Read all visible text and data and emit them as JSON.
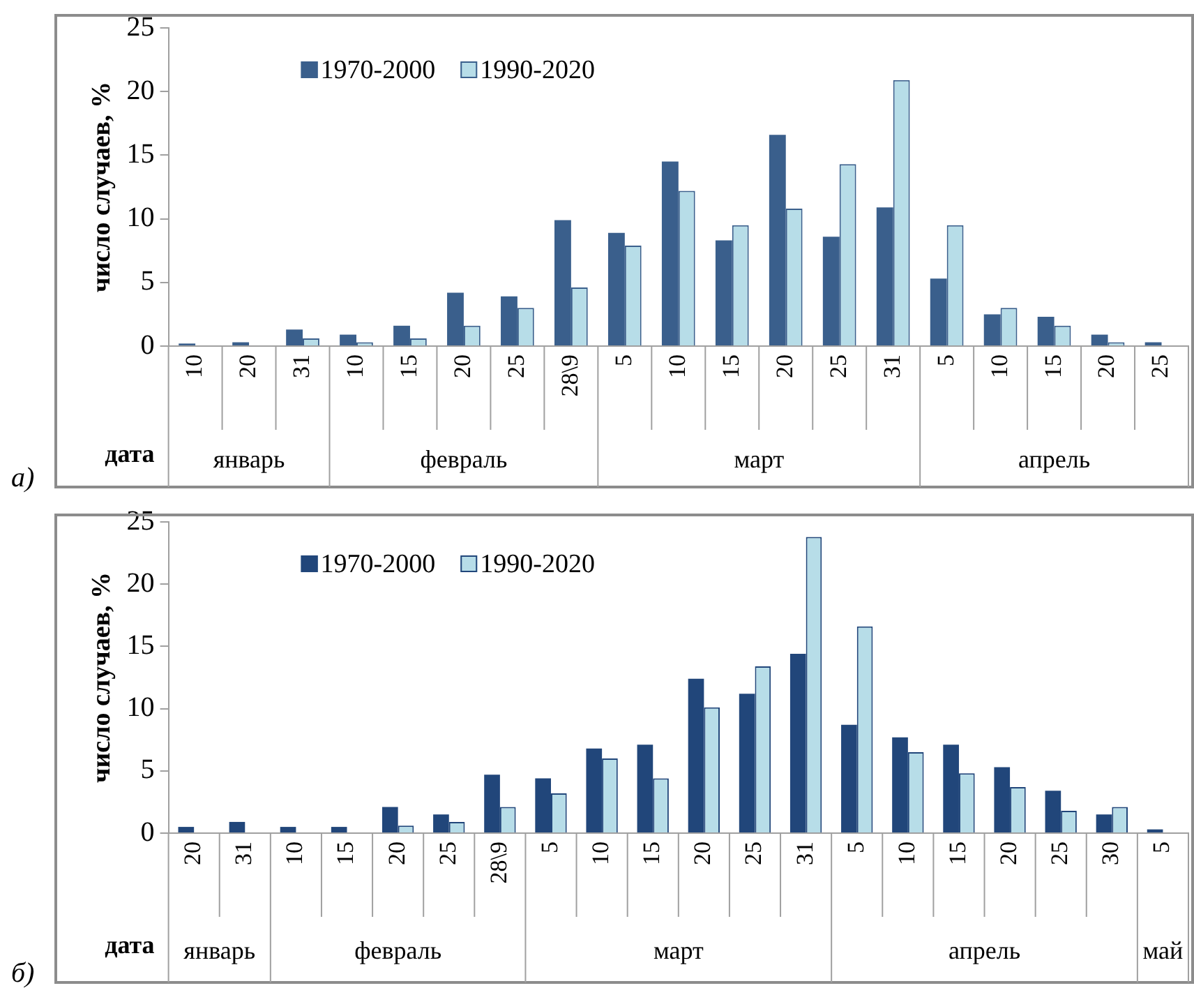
{
  "chart_data": [
    {
      "type": "bar",
      "title": "а)",
      "xlabel": "дата",
      "ylabel": "число случаев, %",
      "categories": [
        "10",
        "20",
        "31",
        "10",
        "15",
        "20",
        "25",
        "28\\9",
        "5",
        "10",
        "15",
        "20",
        "25",
        "31",
        "5",
        "10",
        "15",
        "20",
        "25"
      ],
      "annotations": [
        "январь",
        "февраль",
        "март",
        "апрель"
      ],
      "series": [
        {
          "name": "1970-2000",
          "color": "#3a5f8c",
          "values": [
            0.2,
            0.3,
            1.3,
            0.9,
            1.6,
            4.2,
            3.9,
            9.9,
            8.9,
            14.5,
            8.3,
            16.6,
            8.6,
            10.9,
            5.3,
            2.5,
            2.3,
            0.9,
            0.3
          ]
        },
        {
          "name": "1990-2020",
          "color": "#b7dde8",
          "values": [
            0,
            0,
            0.6,
            0.3,
            0.6,
            1.6,
            3.0,
            4.6,
            7.9,
            12.2,
            9.5,
            10.8,
            14.3,
            20.9,
            9.5,
            3.0,
            1.6,
            0.3,
            0
          ]
        }
      ],
      "ylim": [
        0,
        25
      ],
      "yticks": [
        0,
        5,
        10,
        15,
        20,
        25
      ],
      "grid": false,
      "legend": "top left"
    },
    {
      "type": "bar",
      "title": "б)",
      "xlabel": "дата",
      "ylabel": "число случаев, %",
      "categories": [
        "20",
        "31",
        "10",
        "15",
        "20",
        "25",
        "28\\9",
        "5",
        "10",
        "15",
        "20",
        "25",
        "31",
        "5",
        "10",
        "15",
        "20",
        "25",
        "30",
        "5"
      ],
      "annotations": [
        "январь",
        "февраль",
        "март",
        "апрель",
        "май"
      ],
      "series": [
        {
          "name": "1970-2000",
          "color": "#21467a",
          "values": [
            0.5,
            0.9,
            0.5,
            0.5,
            2.1,
            1.5,
            4.7,
            4.4,
            6.8,
            7.1,
            12.4,
            11.2,
            14.4,
            8.7,
            7.7,
            7.1,
            5.3,
            3.4,
            1.5,
            0.3
          ]
        },
        {
          "name": "1990-2020",
          "color": "#b7dde8",
          "values": [
            0,
            0,
            0,
            0,
            0.6,
            0.9,
            2.1,
            3.2,
            6.0,
            4.4,
            10.1,
            13.4,
            23.8,
            16.6,
            6.5,
            4.8,
            3.7,
            1.8,
            2.1,
            0
          ]
        }
      ],
      "ylim": [
        0,
        25
      ],
      "yticks": [
        0,
        5,
        10,
        15,
        20,
        25
      ],
      "grid": false,
      "legend": "top left"
    }
  ]
}
